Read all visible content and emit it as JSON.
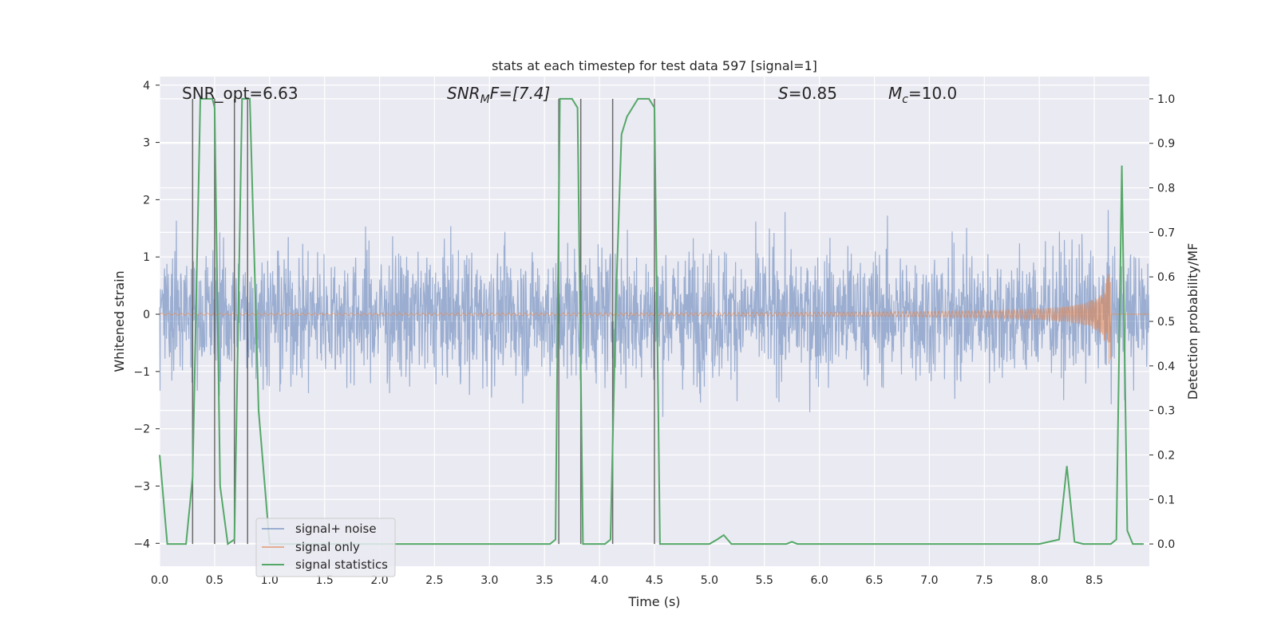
{
  "chart_data": {
    "type": "line",
    "title": "stats at each timestep for test data 597 [signal=1]",
    "xlabel": "Time (s)",
    "ylabel": "Whitened strain",
    "y2label": "Detection probability/MF",
    "xlim": [
      0.0,
      9.0
    ],
    "ylim": [
      -4.4,
      4.15
    ],
    "y2lim": [
      -0.05,
      1.05
    ],
    "xticks": [
      "0.0",
      "0.5",
      "1.0",
      "1.5",
      "2.0",
      "2.5",
      "3.0",
      "3.5",
      "4.0",
      "4.5",
      "5.0",
      "5.5",
      "6.0",
      "6.5",
      "7.0",
      "7.5",
      "8.0",
      "8.5"
    ],
    "yticks": [
      "4",
      "3",
      "2",
      "1",
      "0",
      "−1",
      "−2",
      "−3",
      "−4"
    ],
    "y2ticks": [
      "1.0",
      "0.9",
      "0.8",
      "0.7",
      "0.6",
      "0.5",
      "0.4",
      "0.3",
      "0.2",
      "0.1",
      "0.0"
    ],
    "grid": true,
    "legend_position": "lower-left",
    "annotations": {
      "snr_opt": "SNR_opt=6.63",
      "snr_mf": "SNR",
      "snr_mf_sub": "M",
      "snr_mf_rest": "F=[7.4]",
      "s": "S",
      "s_rest": "=0.85",
      "mc": "M",
      "mc_sub": "c",
      "mc_rest": "=10.0"
    },
    "series": [
      {
        "name": "signal+ noise",
        "color": "#4c72b0",
        "description_values": "whitened noisy strain, amplitude roughly within [-3.4, 3.9]"
      },
      {
        "name": "signal only",
        "color": "#dd8452",
        "chirp_end_time": 8.65,
        "chirp_peak_amplitude": 1.2
      },
      {
        "name": "signal statistics",
        "color": "#55a868",
        "x": [
          0.0,
          0.07,
          0.12,
          0.24,
          0.3,
          0.37,
          0.48,
          0.5,
          0.55,
          0.62,
          0.68,
          0.75,
          0.82,
          0.9,
          1.0,
          2.0,
          3.0,
          3.55,
          3.6,
          3.64,
          3.67,
          3.75,
          3.8,
          3.85,
          3.95,
          4.05,
          4.1,
          4.15,
          4.2,
          4.25,
          4.3,
          4.35,
          4.45,
          4.5,
          4.55,
          4.6,
          4.75,
          5.0,
          5.07,
          5.13,
          5.2,
          5.3,
          5.5,
          5.7,
          5.75,
          5.8,
          6.0,
          7.0,
          8.0,
          8.18,
          8.25,
          8.32,
          8.4,
          8.65,
          8.7,
          8.75,
          8.8,
          8.85,
          8.95
        ],
        "y": [
          0.2,
          0.0,
          0.0,
          0.0,
          0.15,
          1.0,
          1.0,
          0.98,
          0.13,
          0.0,
          0.01,
          1.0,
          1.0,
          0.3,
          0.0,
          0.0,
          0.0,
          0.0,
          0.01,
          1.0,
          1.0,
          1.0,
          0.98,
          0.0,
          0.0,
          0.0,
          0.01,
          0.55,
          0.92,
          0.96,
          0.98,
          1.0,
          1.0,
          0.98,
          0.0,
          0.0,
          0.0,
          0.0,
          0.01,
          0.02,
          0.0,
          0.0,
          0.0,
          0.0,
          0.005,
          0.0,
          0.0,
          0.0,
          0.0,
          0.01,
          0.175,
          0.005,
          0.0,
          0.0,
          0.01,
          0.85,
          0.03,
          0.0,
          0.0
        ]
      }
    ],
    "vertical_lines_x": [
      0.3,
      0.5,
      0.68,
      0.8,
      3.63,
      3.83,
      4.12,
      4.5
    ]
  }
}
